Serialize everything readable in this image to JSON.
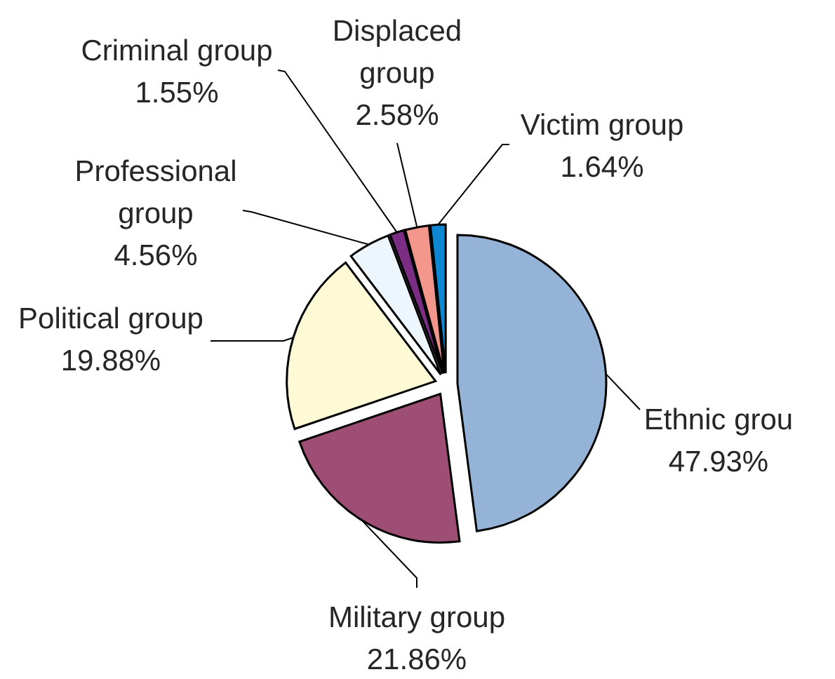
{
  "chart_data": {
    "type": "pie",
    "categories": [
      "Ethnic grou",
      "Military group",
      "Political group",
      "Professional group",
      "Criminal group",
      "Displaced group",
      "Victim group"
    ],
    "values": [
      47.93,
      21.86,
      19.88,
      4.56,
      1.55,
      2.58,
      1.64
    ],
    "value_labels": [
      "47.93%",
      "21.86%",
      "19.88%",
      "4.56%",
      "1.55%",
      "2.58%",
      "1.64%"
    ],
    "colors": [
      "#95b3d7",
      "#9e4e74",
      "#fffad6",
      "#eef6fd",
      "#7b2c83",
      "#f3968c",
      "#0e87d2"
    ]
  }
}
